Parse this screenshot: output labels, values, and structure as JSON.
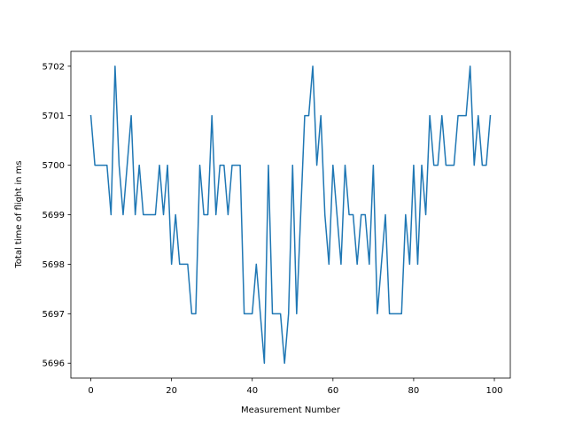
{
  "chart_data": {
    "type": "line",
    "title": "",
    "xlabel": "Measurement Number",
    "ylabel": "Total time of flight in ms",
    "xlim": [
      -4.95,
      103.95
    ],
    "ylim": [
      5695.7,
      5702.3
    ],
    "xticks": [
      0,
      20,
      40,
      60,
      80,
      100
    ],
    "yticks": [
      5696,
      5697,
      5698,
      5699,
      5700,
      5701,
      5702
    ],
    "grid": false,
    "legend": "none",
    "series": [
      {
        "color": "#1f77b4",
        "x": [
          0,
          1,
          2,
          3,
          4,
          5,
          6,
          7,
          8,
          9,
          10,
          11,
          12,
          13,
          14,
          15,
          16,
          17,
          18,
          19,
          20,
          21,
          22,
          23,
          24,
          25,
          26,
          27,
          28,
          29,
          30,
          31,
          32,
          33,
          34,
          35,
          36,
          37,
          38,
          39,
          40,
          41,
          42,
          43,
          44,
          45,
          46,
          47,
          48,
          49,
          50,
          51,
          52,
          53,
          54,
          55,
          56,
          57,
          58,
          59,
          60,
          61,
          62,
          63,
          64,
          65,
          66,
          67,
          68,
          69,
          70,
          71,
          72,
          73,
          74,
          75,
          76,
          77,
          78,
          79,
          80,
          81,
          82,
          83,
          84,
          85,
          86,
          87,
          88,
          89,
          90,
          91,
          92,
          93,
          94,
          95,
          96,
          97,
          98,
          99
        ],
        "values": [
          5701,
          5700,
          5700,
          5700,
          5700,
          5699,
          5702,
          5700,
          5699,
          5700,
          5701,
          5699,
          5700,
          5699,
          5699,
          5699,
          5699,
          5700,
          5699,
          5700,
          5698,
          5699,
          5698,
          5698,
          5698,
          5697,
          5697,
          5700,
          5699,
          5699,
          5701,
          5699,
          5700,
          5700,
          5699,
          5700,
          5700,
          5700,
          5697,
          5697,
          5697,
          5698,
          5697,
          5696,
          5700,
          5697,
          5697,
          5697,
          5696,
          5697,
          5700,
          5697,
          5699,
          5701,
          5701,
          5702,
          5700,
          5701,
          5699,
          5698,
          5700,
          5699,
          5698,
          5700,
          5699,
          5699,
          5698,
          5699,
          5699,
          5698,
          5700,
          5697,
          5698,
          5699,
          5697,
          5697,
          5697,
          5697,
          5699,
          5698,
          5700,
          5698,
          5700,
          5699,
          5701,
          5700,
          5700,
          5701,
          5700,
          5700,
          5700,
          5701,
          5701,
          5701,
          5702,
          5700,
          5701,
          5700,
          5700,
          5701
        ]
      }
    ]
  }
}
